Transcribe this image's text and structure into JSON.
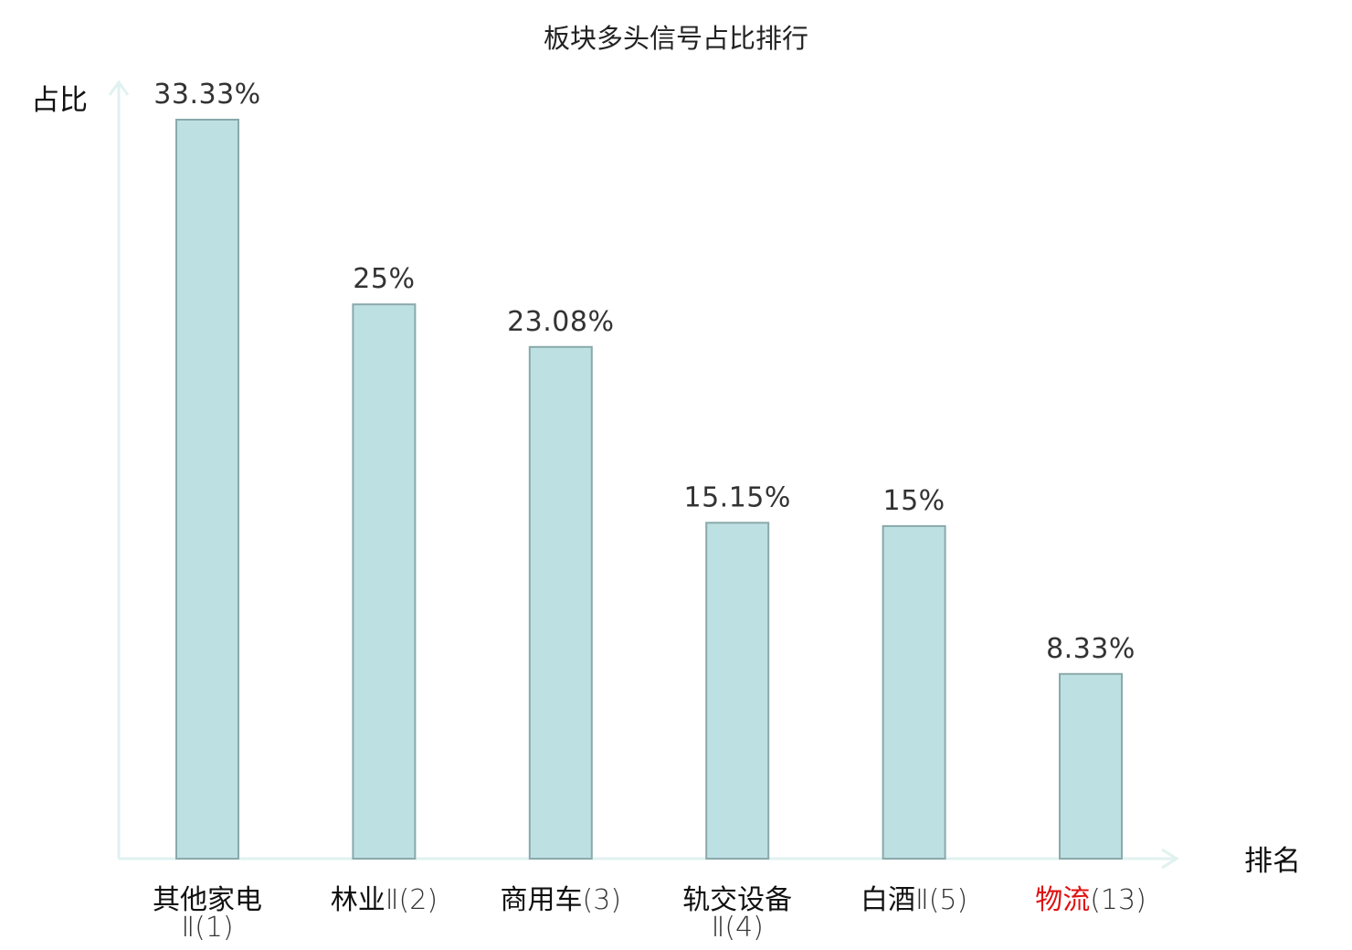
{
  "chart_data": {
    "type": "bar",
    "title": "板块多头信号占比排行",
    "ylabel": "占比",
    "xlabel": "排名",
    "ylim": [
      0,
      35
    ],
    "grid": false,
    "legend": "none",
    "categories": [
      {
        "name": "其他家电",
        "rank": "Ⅱ(1)",
        "wrap": true,
        "highlight": false
      },
      {
        "name": "林业",
        "rank": "Ⅱ(2)",
        "wrap": false,
        "highlight": false
      },
      {
        "name": "商用车",
        "rank": "(3)",
        "wrap": false,
        "highlight": false
      },
      {
        "name": "轨交设备",
        "rank": "Ⅱ(4)",
        "wrap": true,
        "highlight": false
      },
      {
        "name": "白酒",
        "rank": "Ⅱ(5)",
        "wrap": false,
        "highlight": false
      },
      {
        "name": "物流",
        "rank": "(13)",
        "wrap": false,
        "highlight": true
      }
    ],
    "values": [
      33.33,
      25,
      23.08,
      15.15,
      15,
      8.33
    ],
    "value_labels": [
      "33.33%",
      "25%",
      "23.08%",
      "15.15%",
      "15%",
      "8.33%"
    ],
    "colors": {
      "bar_fill": "#bde0e3",
      "bar_stroke": "#8aa9ab",
      "axis": "#e0f2f0",
      "highlight_text": "#e01010",
      "value_text": "#333333"
    }
  }
}
